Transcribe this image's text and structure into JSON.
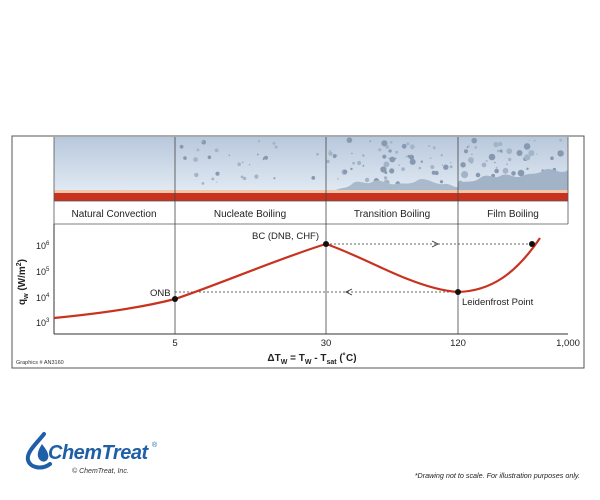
{
  "regions": [
    "Natural Convection",
    "Nucleate Boiling",
    "Transition Boiling",
    "Film Boiling"
  ],
  "x_ticks": [
    "5",
    "30",
    "120",
    "1,000"
  ],
  "y_ticks": [
    {
      "base": "10",
      "exp": "6"
    },
    {
      "base": "10",
      "exp": "5"
    },
    {
      "base": "10",
      "exp": "4"
    },
    {
      "base": "10",
      "exp": "3"
    }
  ],
  "y_label": {
    "q": "q",
    "sub": "w",
    "rest": " (W/m",
    "sup": "2",
    "close": ")"
  },
  "x_label": {
    "delta": "ΔT",
    "sub1": "W",
    "eq": " = T",
    "sub2": "W",
    "minus": " - T",
    "sub3": "sat",
    "unit": " (˚C)"
  },
  "points": {
    "onb": "ONB",
    "bc": "BC (DNB, CHF)",
    "leidenfrost": "Leidenfrost Point"
  },
  "graphics_id": "Graphics # AN3160",
  "brand": {
    "name": "ChemTreat",
    "trademark": "®",
    "copyright": "© ChemTreat, Inc."
  },
  "disclaimer": "*Drawing not to scale. For illustration purposes only.",
  "colors": {
    "curve": "#c8321e",
    "heater": "#c8321e",
    "fluid": "#c9d6e6",
    "frame": "#555555"
  }
}
